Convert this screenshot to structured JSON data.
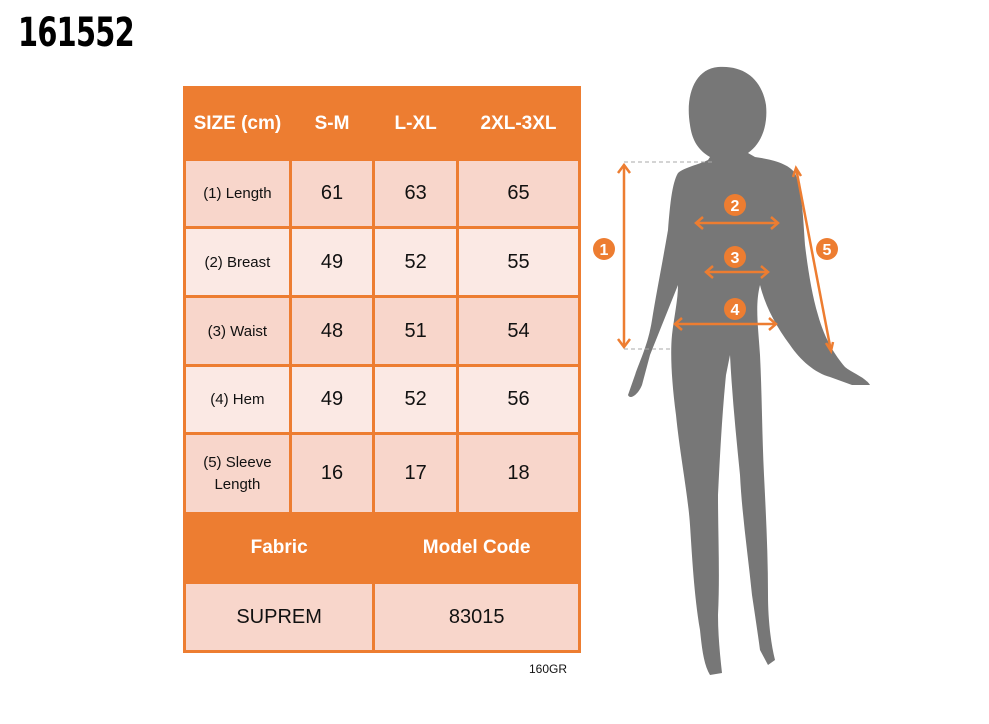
{
  "product_code": "161552",
  "table": {
    "headers": [
      "SIZE (cm)",
      "S-M",
      "L-XL",
      "2XL-3XL"
    ],
    "rows": [
      {
        "label": "(1) Length",
        "values": [
          "61",
          "63",
          "65"
        ]
      },
      {
        "label": "(2) Breast",
        "values": [
          "49",
          "52",
          "55"
        ]
      },
      {
        "label": "(3) Waist",
        "values": [
          "48",
          "51",
          "54"
        ]
      },
      {
        "label": "(4) Hem",
        "values": [
          "49",
          "52",
          "56"
        ]
      },
      {
        "label": "(5) Sleeve Length",
        "values": [
          "16",
          "17",
          "18"
        ]
      }
    ],
    "fabric_header": "Fabric",
    "model_code_header": "Model Code",
    "fabric": "SUPREM",
    "model_code": "83015"
  },
  "fabric_weight": "160GR",
  "markers": [
    "1",
    "2",
    "3",
    "4",
    "5"
  ],
  "colors": {
    "accent": "#ed7d31",
    "row_dark": "#f8d6cb",
    "row_light": "#fbe9e4",
    "silhouette": "#777777"
  }
}
